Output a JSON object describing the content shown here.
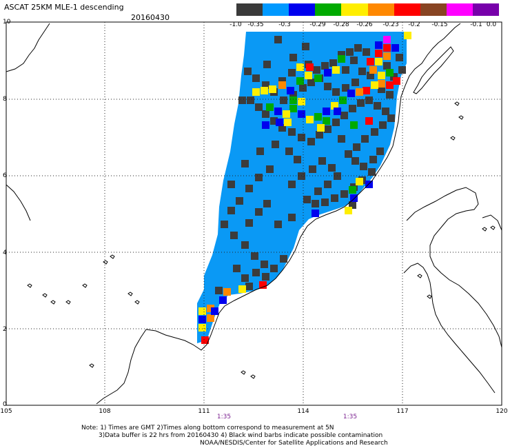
{
  "title": "ASCAT 25KM MLE-1 descending",
  "date": "20160430",
  "colorbar": {
    "labels": [
      "-1.0",
      "-0.35",
      "-0.3",
      "-0.29",
      "-0.28",
      "-0.26",
      "-0.23",
      "-0.2",
      "-0.15",
      "-0.1",
      "0.0"
    ],
    "colors": [
      "#3a3a3a",
      "#0099ff",
      "#0000ee",
      "#00aa00",
      "#ffee00",
      "#ff8800",
      "#ff0000",
      "#884422",
      "#ff00ff",
      "#7700aa"
    ]
  },
  "axes": {
    "lat_labels": [
      "10",
      "8",
      "6",
      "4",
      "2",
      "0"
    ],
    "lon_labels": [
      "105",
      "108",
      "111",
      "114",
      "117",
      "120"
    ],
    "time_labels": [
      "1:35",
      "1:35"
    ]
  },
  "notes": {
    "line1": "Note: 1) Times are GMT 2)Times along bottom correspond to measurement at 5N",
    "line2": "3)Data buffer is 22 hrs from 20160430 4) Black wind barbs indicate possible contamination",
    "line3": "NOAA/NESDIS/Center for Satellite Applications and Research"
  },
  "map_colors": {
    "swath": "#0a99f5",
    "dark": "#3c3c3c",
    "grid": "#222222",
    "coast": "#000000"
  }
}
